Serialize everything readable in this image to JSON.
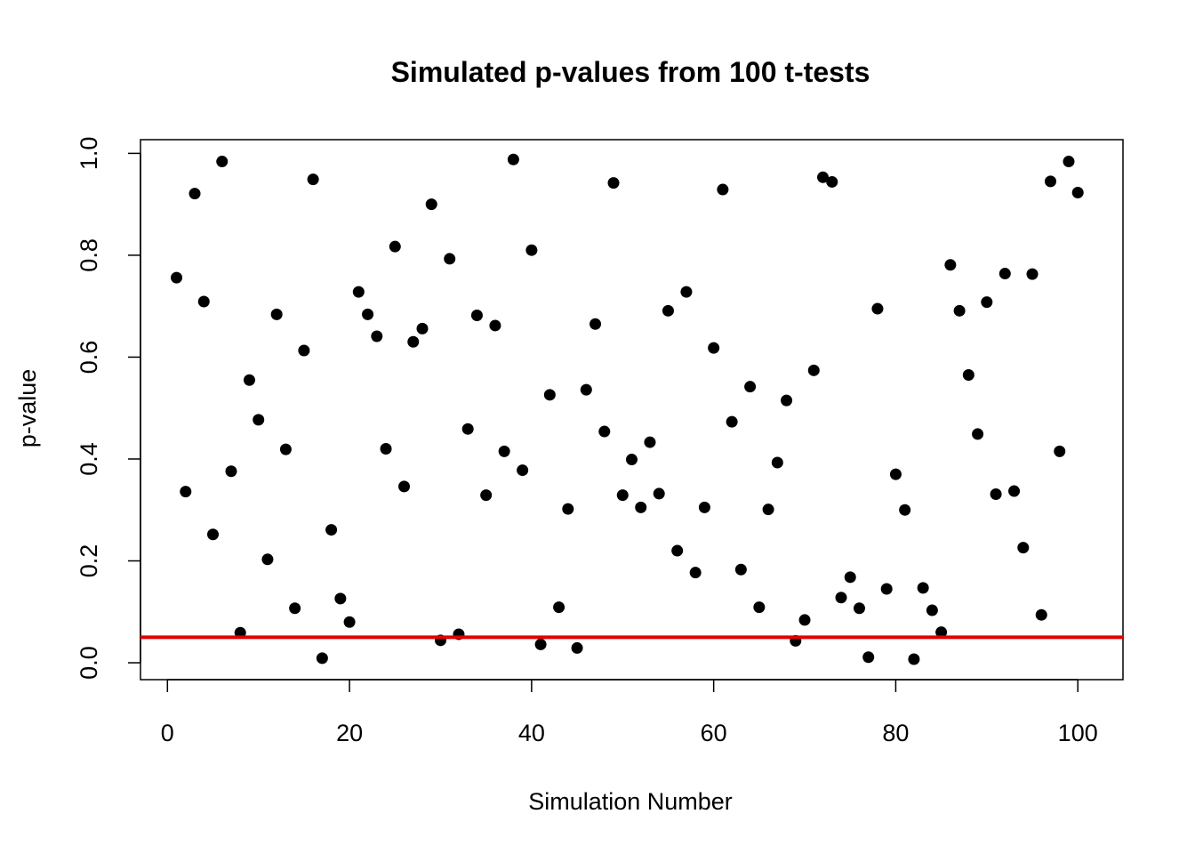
{
  "chart_data": {
    "type": "scatter",
    "title": "Simulated p-values from 100 t-tests",
    "xlabel": "Simulation Number",
    "ylabel": "p-value",
    "xlim": [
      -2.96,
      104.96
    ],
    "ylim": [
      -0.03312,
      1.02688
    ],
    "x_ticks": [
      0,
      20,
      40,
      60,
      80,
      100
    ],
    "y_ticks": [
      0.0,
      0.2,
      0.4,
      0.6,
      0.8,
      1.0
    ],
    "x_tick_labels": [
      "0",
      "20",
      "40",
      "60",
      "80",
      "100"
    ],
    "y_tick_labels": [
      "0.0",
      "0.2",
      "0.4",
      "0.6",
      "0.8",
      "1.0"
    ],
    "grid": false,
    "legend": "none",
    "point_color": "#000000",
    "reference_line": {
      "orientation": "horizontal",
      "value": 0.05,
      "color": "#e00000"
    },
    "series": [
      {
        "x": [
          1,
          2,
          3,
          4,
          5,
          6,
          7,
          8,
          9,
          10,
          11,
          12,
          13,
          14,
          15,
          16,
          17,
          18,
          19,
          20,
          21,
          22,
          23,
          24,
          25,
          26,
          27,
          28,
          29,
          30,
          31,
          32,
          33,
          34,
          35,
          36,
          37,
          38,
          39,
          40,
          41,
          42,
          43,
          44,
          45,
          46,
          47,
          48,
          49,
          50,
          51,
          52,
          53,
          54,
          55,
          56,
          57,
          58,
          59,
          60,
          61,
          62,
          63,
          64,
          65,
          66,
          67,
          68,
          69,
          70,
          71,
          72,
          73,
          74,
          75,
          76,
          77,
          78,
          79,
          80,
          81,
          82,
          83,
          84,
          85,
          86,
          87,
          88,
          89,
          90,
          91,
          92,
          93,
          94,
          95,
          96,
          97,
          98,
          99,
          100
        ],
        "y": [
          0.756,
          0.336,
          0.921,
          0.709,
          0.252,
          0.984,
          0.376,
          0.059,
          0.555,
          0.477,
          0.203,
          0.684,
          0.419,
          0.107,
          0.613,
          0.949,
          0.009,
          0.261,
          0.126,
          0.08,
          0.728,
          0.684,
          0.641,
          0.42,
          0.817,
          0.346,
          0.63,
          0.656,
          0.9,
          0.044,
          0.793,
          0.056,
          0.459,
          0.682,
          0.329,
          0.662,
          0.415,
          0.988,
          0.378,
          0.81,
          0.036,
          0.526,
          0.109,
          0.302,
          0.029,
          0.536,
          0.665,
          0.454,
          0.942,
          0.329,
          0.399,
          0.305,
          0.433,
          0.332,
          0.691,
          0.22,
          0.728,
          0.177,
          0.305,
          0.618,
          0.929,
          0.473,
          0.183,
          0.542,
          0.109,
          0.301,
          0.393,
          0.515,
          0.043,
          0.084,
          0.574,
          0.953,
          0.944,
          0.128,
          0.168,
          0.107,
          0.011,
          0.695,
          0.145,
          0.37,
          0.3,
          0.007,
          0.147,
          0.103,
          0.06,
          0.781,
          0.691,
          0.565,
          0.449,
          0.708,
          0.331,
          0.764,
          0.337,
          0.226,
          0.763,
          0.094,
          0.945,
          0.415,
          0.984,
          0.923
        ]
      }
    ]
  }
}
